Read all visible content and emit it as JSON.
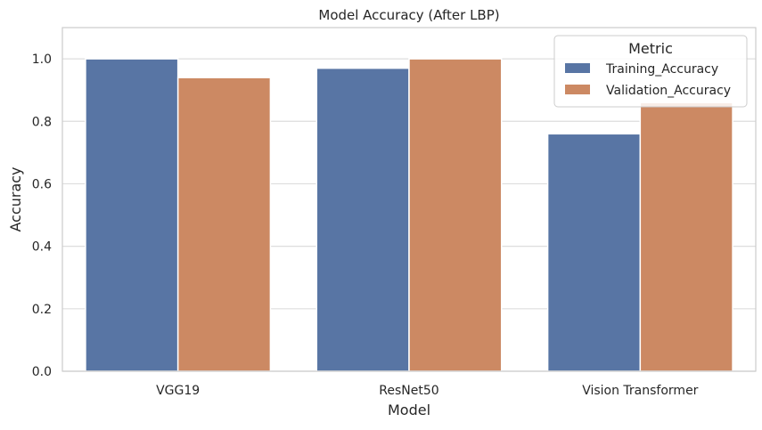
{
  "chart_data": {
    "type": "bar",
    "title": "Model Accuracy (After LBP)",
    "xlabel": "Model",
    "ylabel": "Accuracy",
    "categories": [
      "VGG19",
      "ResNet50",
      "Vision Transformer"
    ],
    "series": [
      {
        "name": "Training_Accuracy",
        "values": [
          1.0,
          0.97,
          0.76
        ],
        "color": "#5875a4"
      },
      {
        "name": "Validation_Accuracy",
        "values": [
          0.94,
          1.0,
          0.86
        ],
        "color": "#cc8963"
      }
    ],
    "ylim": [
      0,
      1.1
    ],
    "yticks": [
      "0.0",
      "0.2",
      "0.4",
      "0.6",
      "0.8",
      "1.0"
    ],
    "grid": "horizontal",
    "legend": {
      "title": "Metric",
      "position": "top-right"
    }
  }
}
